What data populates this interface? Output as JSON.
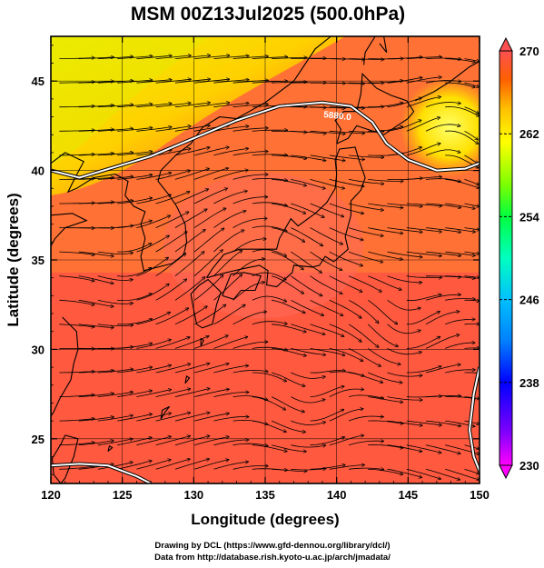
{
  "title": "MSM 00Z13Jul2025 (500.0hPa)",
  "map": {
    "xlabel": "Longitude (degrees)",
    "ylabel": "Latitude  (degrees)",
    "xlim": [
      120,
      150
    ],
    "ylim": [
      22.5,
      47.5
    ],
    "xticks": [
      120,
      125,
      130,
      135,
      140,
      145,
      150
    ],
    "yticks": [
      25,
      30,
      35,
      40,
      45
    ],
    "grid": true,
    "contour": {
      "label": "5880.0",
      "color": "#ffffff"
    },
    "high_center": {
      "lon": 148,
      "lat": 43
    }
  },
  "colorbar": {
    "min": 230,
    "max": 270,
    "tick_labels": [
      "270",
      "262",
      "254",
      "246",
      "238",
      "230"
    ],
    "tick_values": [
      270,
      262,
      254,
      246,
      238,
      230
    ],
    "colors": [
      "#ff00ff",
      "#8000ff",
      "#0000ff",
      "#0080ff",
      "#00c0ff",
      "#00ffc0",
      "#00ff40",
      "#40ff00",
      "#a0ff00",
      "#ffff00",
      "#ffc000",
      "#ff8000",
      "#ff4000",
      "#ff6050"
    ]
  },
  "credits": {
    "line1": "Drawing by DCL (https://www.gfd-dennou.org/library/dcl/)",
    "line2": "Data from http://database.rish.kyoto-u.ac.jp/arch/jmadata/"
  }
}
